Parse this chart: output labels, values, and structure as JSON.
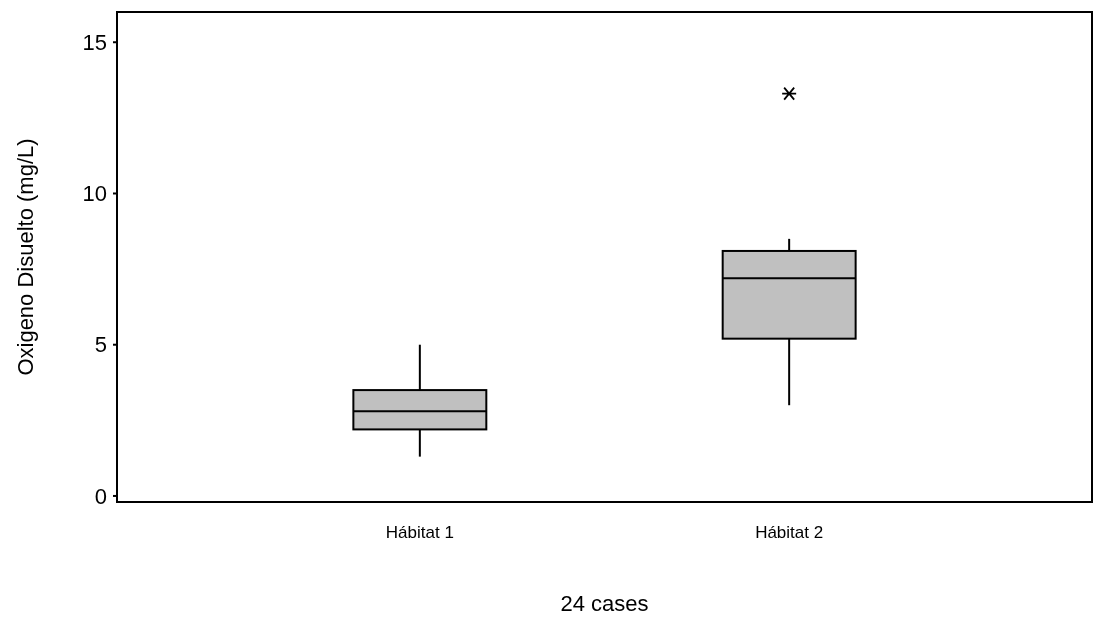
{
  "chart_data": {
    "type": "box",
    "xlabel": "24 cases",
    "ylabel": "Oxigeno Disuelto (mg/L)",
    "categories": [
      "Hábitat 1",
      "Hábitat 2"
    ],
    "color": "#c0c0c0",
    "ylim": [
      -0.2,
      16
    ],
    "yticks": [
      0,
      5,
      10,
      15
    ],
    "grid": false,
    "boxes": [
      {
        "low": 1.3,
        "q1": 2.2,
        "median": 2.8,
        "q3": 3.5,
        "high": 5.0
      },
      {
        "low": 3.0,
        "q1": 5.2,
        "median": 7.2,
        "q3": 8.1,
        "high": 8.5,
        "outliers": [
          13.3
        ]
      }
    ]
  }
}
